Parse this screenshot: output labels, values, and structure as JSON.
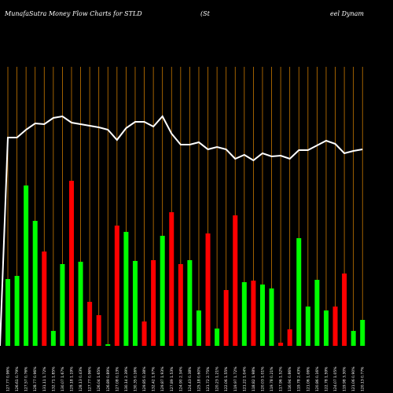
{
  "chart_data": {
    "type": "bar",
    "title": "MunafaSutra  Money Flow  Charts for STLD",
    "subtitle_left": "(St",
    "subtitle_right": "eel Dynam",
    "ylim": [
      0,
      220
    ],
    "categories": [
      "127.77 0.96%",
      "126.61 0.79%",
      "127.57 0.76%",
      "128.77 0.96%",
      "131.11 1.72%",
      "132.71 1.85%",
      "130.07 1.67%",
      "129.18 1.19%",
      "128.13 0.43%",
      "127.77 0.96%",
      "126.04 1.65%",
      "126.89 0.89%",
      "127.08 0.13%",
      "130.14 2.39%",
      "130.35 0.16%",
      "129.85 0.38%",
      "132.42 1.97%",
      "129.87 1.93%",
      "127.89 1.53%",
      "124.90 2.34%",
      "124.43 0.38%",
      "125.18 0.60%",
      "121.72 2.75%",
      "120.23 1.21%",
      "122.06 1.55%",
      "119.97 1.72%",
      "121.22 1.04%",
      "118.82 1.98%",
      "120.03 1.01%",
      "119.78 0.21%",
      "117.96 1.52%",
      "116.94 0.86%",
      "119.78 2.43%",
      "121.06 1.06%",
      "120.86 0.16%",
      "122.78 1.59%",
      "124.07 1.05%",
      "119.98 3.30%",
      "121.06 0.90%",
      "120.13 0.77%"
    ],
    "values": [
      85,
      89,
      204,
      159,
      120,
      19,
      104,
      210,
      107,
      56,
      39,
      2,
      153,
      145,
      108,
      31,
      109,
      140,
      170,
      104,
      109,
      45,
      143,
      22,
      71,
      166,
      81,
      83,
      78,
      73,
      4,
      21,
      137,
      50,
      84,
      45,
      50,
      92,
      19,
      33
    ],
    "colors": [
      "#00ff00",
      "#00ff00",
      "#00ff00",
      "#00ff00",
      "#ff0000",
      "#00ff00",
      "#00ff00",
      "#ff0000",
      "#00ff00",
      "#ff0000",
      "#ff0000",
      "#00ff00",
      "#ff0000",
      "#00ff00",
      "#00ff00",
      "#ff0000",
      "#ff0000",
      "#00ff00",
      "#ff0000",
      "#ff0000",
      "#00ff00",
      "#00ff00",
      "#ff0000",
      "#00ff00",
      "#ff0000",
      "#ff0000",
      "#00ff00",
      "#ff0000",
      "#00ff00",
      "#00ff00",
      "#ff0000",
      "#ff0000",
      "#00ff00",
      "#00ff00",
      "#00ff00",
      "#00ff00",
      "#ff0000",
      "#ff0000",
      "#00ff00",
      "#00ff00"
    ],
    "line_values": [
      265,
      265,
      275,
      283,
      282,
      290,
      292,
      284,
      282,
      280,
      278,
      275,
      262,
      277,
      285,
      285,
      279,
      292,
      270,
      256,
      256,
      259,
      250,
      253,
      250,
      238,
      243,
      236,
      245,
      241,
      242,
      238,
      249,
      249,
      255,
      261,
      257,
      245,
      248,
      250
    ],
    "line_color": "#ffffff",
    "grid_color": "#c87800"
  }
}
